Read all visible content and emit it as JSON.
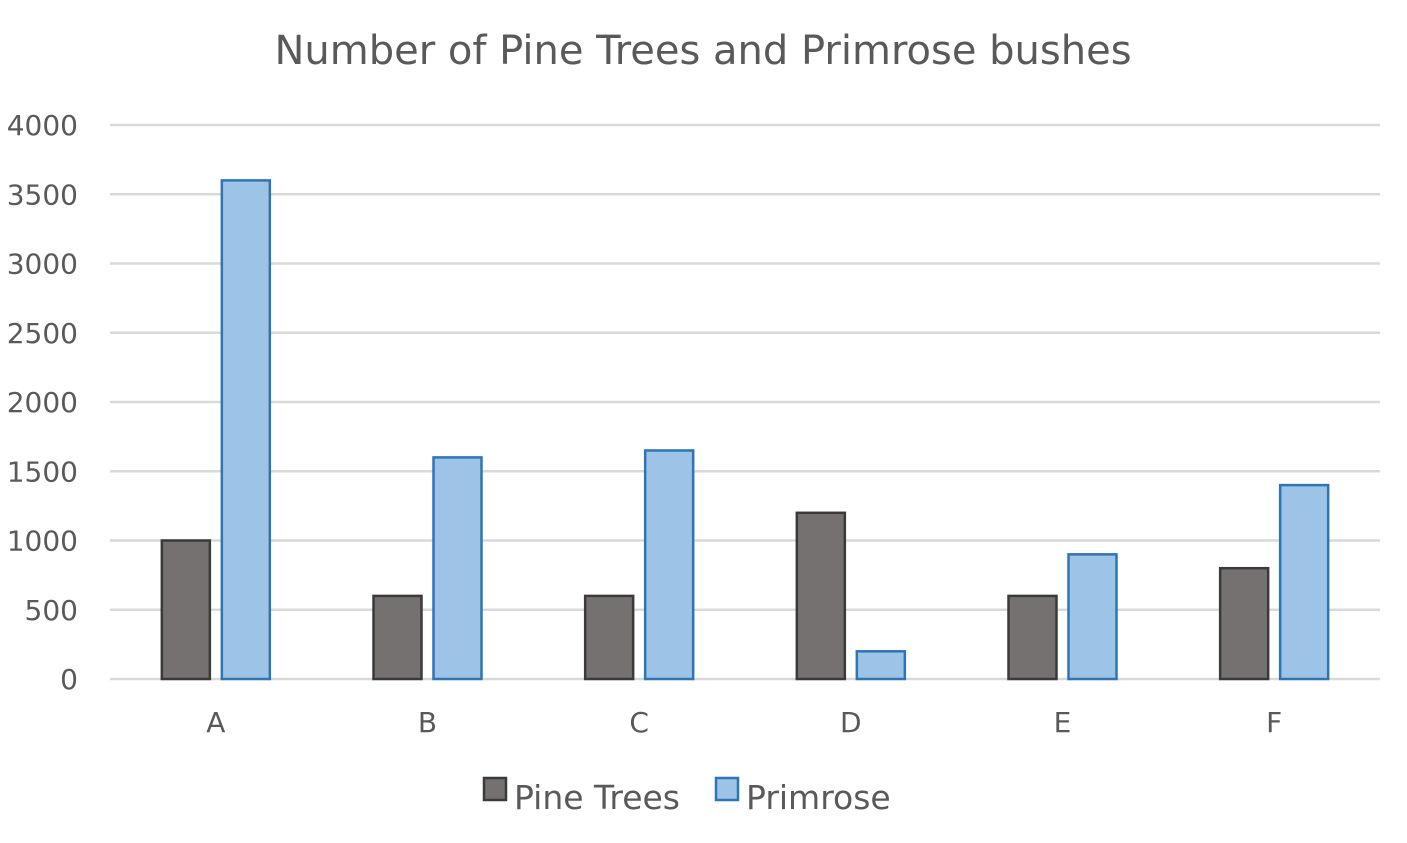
{
  "chart_data": {
    "type": "bar",
    "title": "Number of Pine Trees and Primrose bushes",
    "xlabel": "",
    "ylabel": "",
    "categories": [
      "A",
      "B",
      "C",
      "D",
      "E",
      "F"
    ],
    "ylim": [
      0,
      4000
    ],
    "yticks": [
      0,
      500,
      1000,
      1500,
      2000,
      2500,
      3000,
      3500,
      4000
    ],
    "grid": true,
    "legend_position": "bottom",
    "series": [
      {
        "name": "Pine Trees",
        "values": [
          1000,
          600,
          600,
          1200,
          600,
          800
        ],
        "color": "#767171",
        "stroke": "#3a3a3a"
      },
      {
        "name": "Primrose",
        "values": [
          3600,
          1600,
          1650,
          200,
          900,
          1400
        ],
        "color": "#9dc3e6",
        "stroke": "#2e75b6"
      }
    ]
  }
}
